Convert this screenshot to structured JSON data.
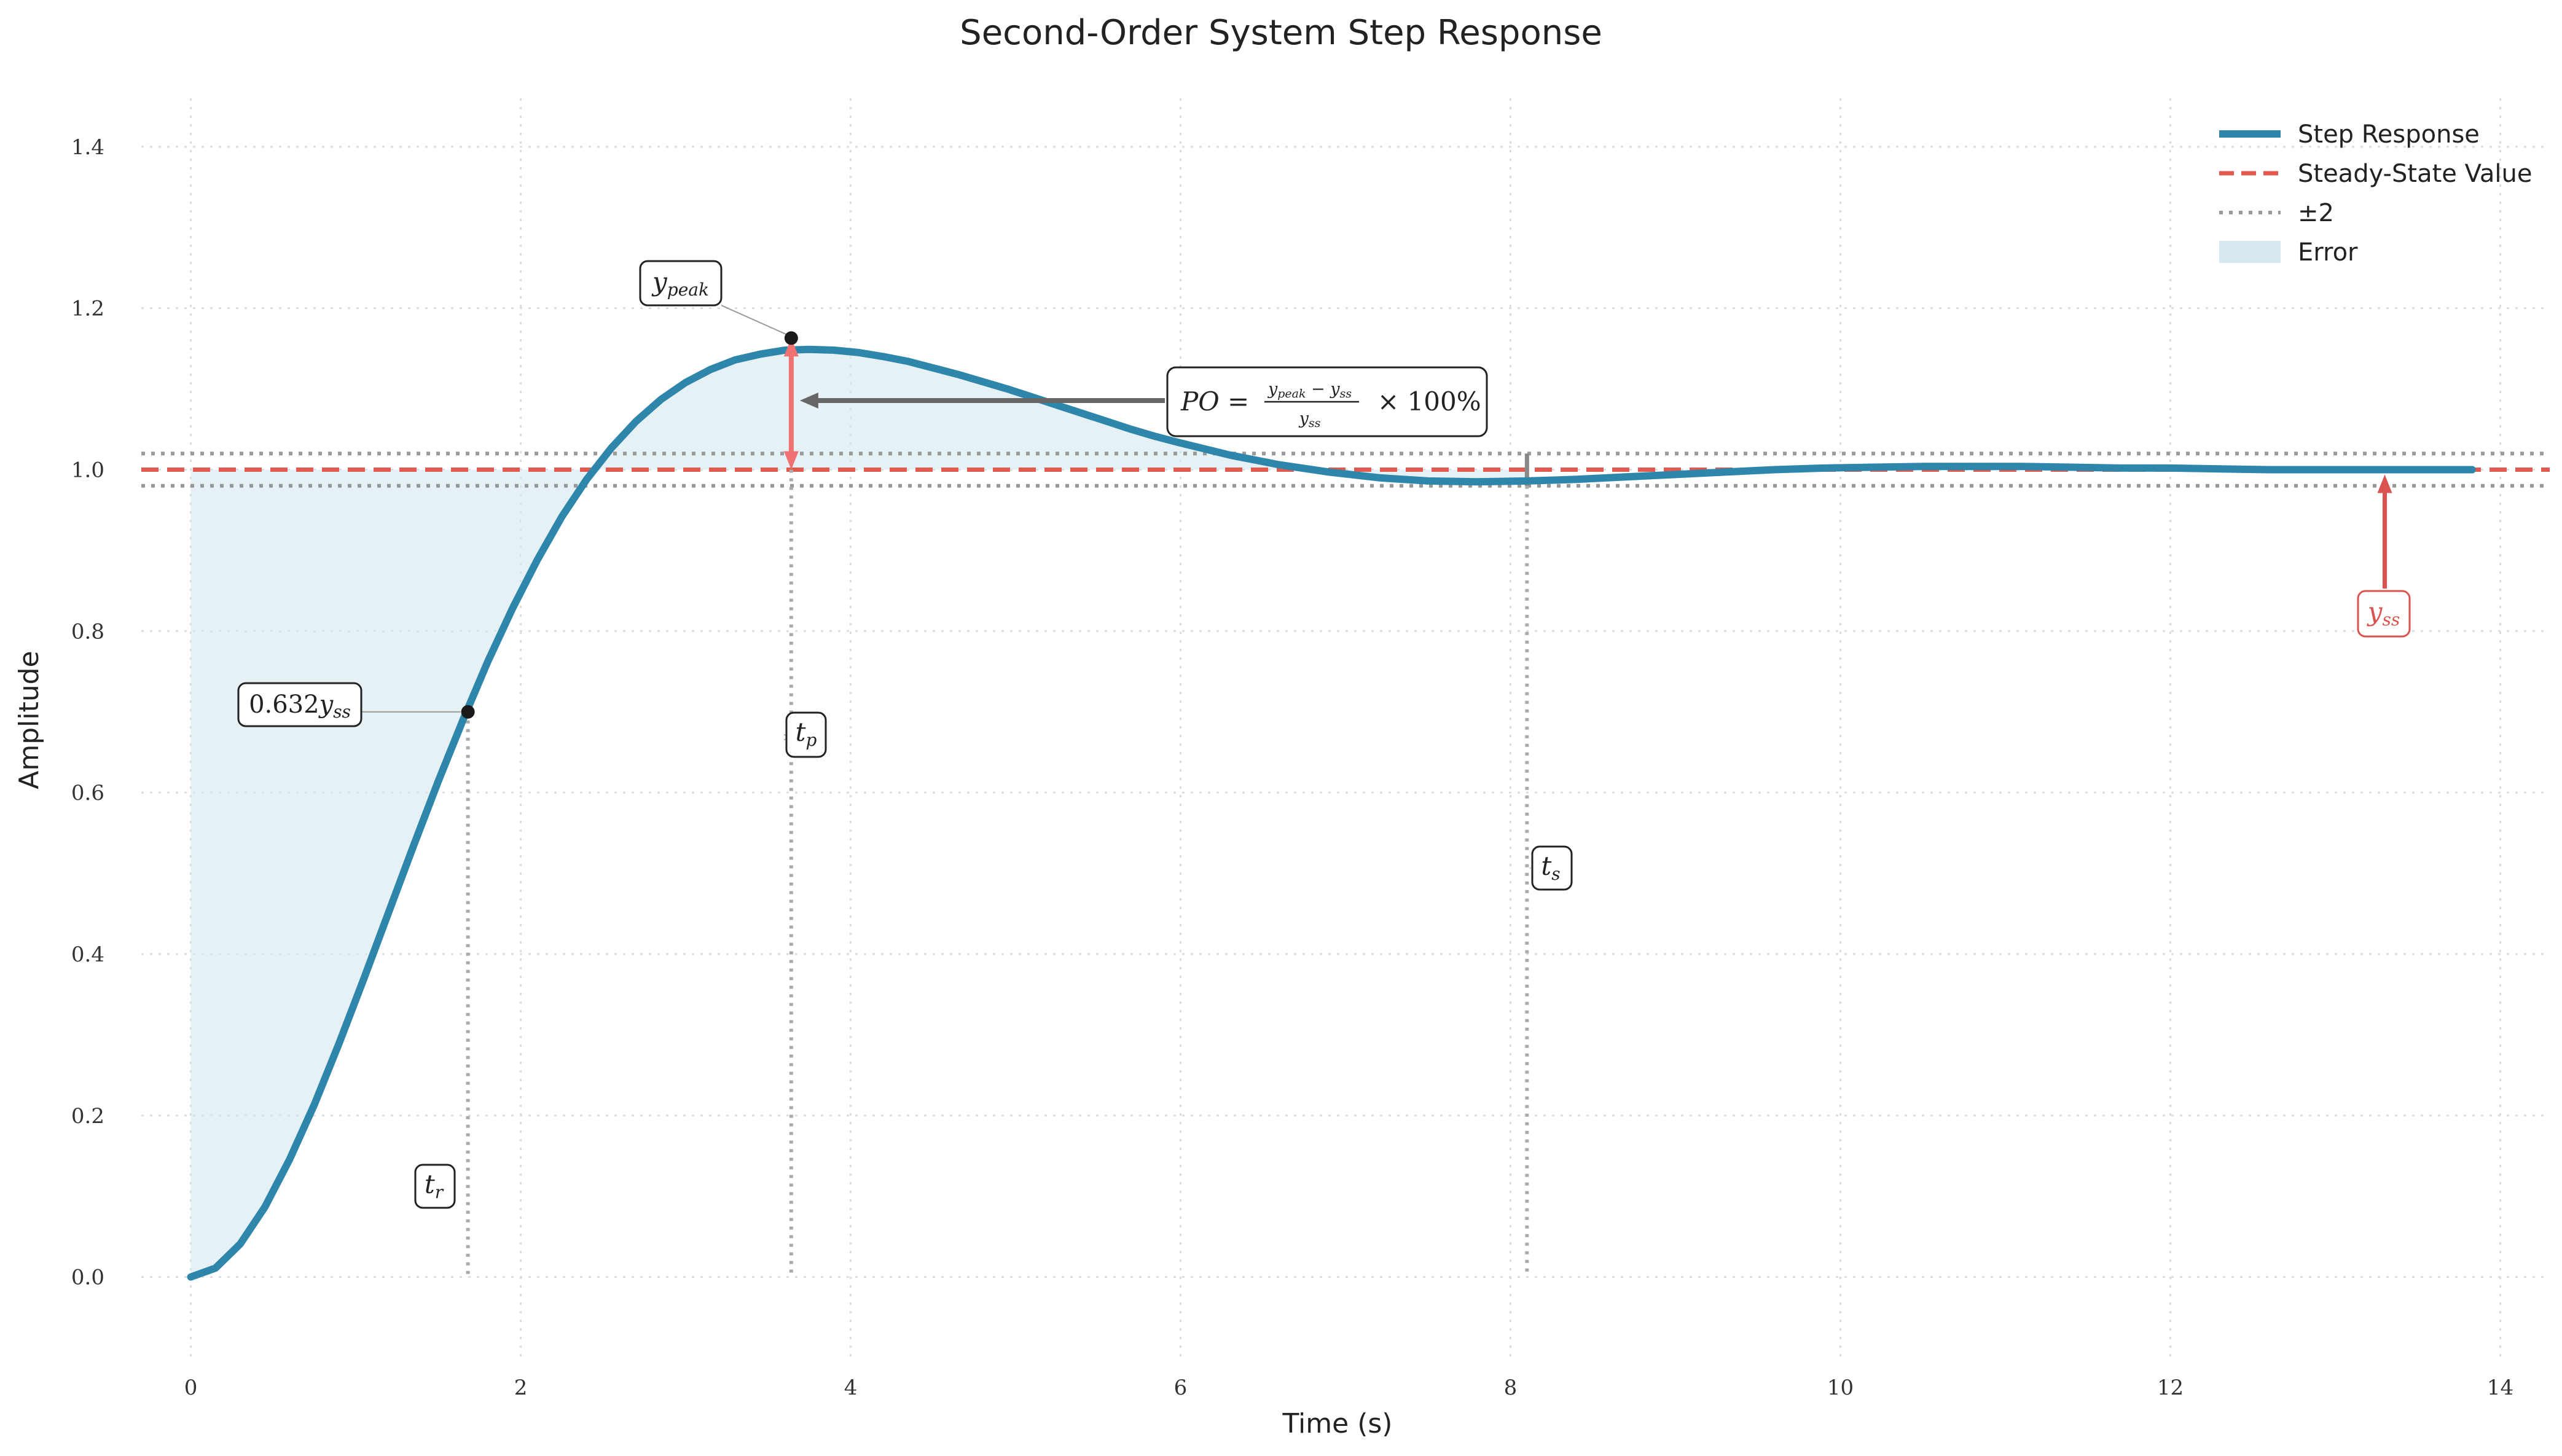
{
  "chart_data": {
    "type": "line",
    "title": "Second-Order System Step Response",
    "xlabel": "Time (s)",
    "ylabel": "Amplitude",
    "xlim": [
      -0.3,
      14.3
    ],
    "ylim": [
      -0.1,
      1.46
    ],
    "xticks": [
      0,
      2,
      4,
      6,
      8,
      10,
      12,
      14
    ],
    "yticks": [
      0.0,
      0.2,
      0.4,
      0.6,
      0.8,
      1.0,
      1.2,
      1.4
    ],
    "xtick_labels": [
      "0",
      "2",
      "4",
      "6",
      "8",
      "10",
      "12",
      "14"
    ],
    "ytick_labels": [
      "0.0",
      "0.2",
      "0.4",
      "0.6",
      "0.8",
      "1.0",
      "1.2",
      "1.4"
    ],
    "grid": true,
    "legend_placement": "top-right",
    "series": [
      {
        "name": "Step Response",
        "color": "#2e86ab",
        "x": [
          0,
          0.15,
          0.3,
          0.45,
          0.6,
          0.75,
          0.9,
          1.05,
          1.2,
          1.35,
          1.5,
          1.65,
          1.8,
          1.95,
          2.1,
          2.25,
          2.4,
          2.55,
          2.7,
          2.85,
          3.0,
          3.15,
          3.3,
          3.45,
          3.6,
          3.75,
          3.9,
          4.05,
          4.2,
          4.35,
          4.5,
          4.65,
          4.8,
          4.95,
          5.1,
          5.25,
          5.4,
          5.55,
          5.7,
          5.85,
          6.0,
          6.3,
          6.6,
          6.9,
          7.2,
          7.5,
          7.8,
          8.1,
          8.4,
          8.7,
          9.0,
          9.3,
          9.6,
          9.9,
          10.2,
          10.5,
          10.8,
          11.1,
          11.4,
          11.7,
          12.0,
          12.3,
          12.6,
          12.9,
          13.2,
          13.5,
          13.83
        ],
        "y": [
          0.0,
          0.011,
          0.041,
          0.087,
          0.146,
          0.214,
          0.29,
          0.37,
          0.452,
          0.534,
          0.614,
          0.69,
          0.762,
          0.828,
          0.888,
          0.942,
          0.988,
          1.027,
          1.06,
          1.087,
          1.108,
          1.124,
          1.136,
          1.143,
          1.148,
          1.149,
          1.148,
          1.145,
          1.14,
          1.134,
          1.126,
          1.118,
          1.109,
          1.1,
          1.09,
          1.08,
          1.07,
          1.06,
          1.05,
          1.041,
          1.033,
          1.018,
          1.006,
          0.997,
          0.99,
          0.986,
          0.985,
          0.986,
          0.988,
          0.991,
          0.994,
          0.997,
          1.0,
          1.002,
          1.003,
          1.004,
          1.004,
          1.004,
          1.003,
          1.002,
          1.002,
          1.001,
          1.0,
          1.0,
          1.0,
          1.0,
          1.0
        ]
      },
      {
        "name": "Steady-State Value",
        "color": "#e05a4f",
        "y": 1.0
      },
      {
        "name": "±2",
        "color": "#999999",
        "y": [
          0.98,
          1.02
        ]
      },
      {
        "name": "Error",
        "color": "#d6e8f0"
      }
    ],
    "annotations": {
      "peak_label": "y_peak",
      "peak_point": {
        "x": 3.64,
        "y": 1.163
      },
      "rise_label": "0.632y_ss",
      "rise_point": {
        "x": 1.68,
        "y": 0.7
      },
      "tr_label": "t_r",
      "tr_x": 1.68,
      "tp_label": "t_p",
      "tp_x": 3.64,
      "ts_label": "t_s",
      "ts_x": 8.1,
      "yss_label": "y_ss",
      "yss_arrow_x": 13.3,
      "po_formula": "PO = (y_peak − y_ss) / y_ss × 100%"
    }
  }
}
